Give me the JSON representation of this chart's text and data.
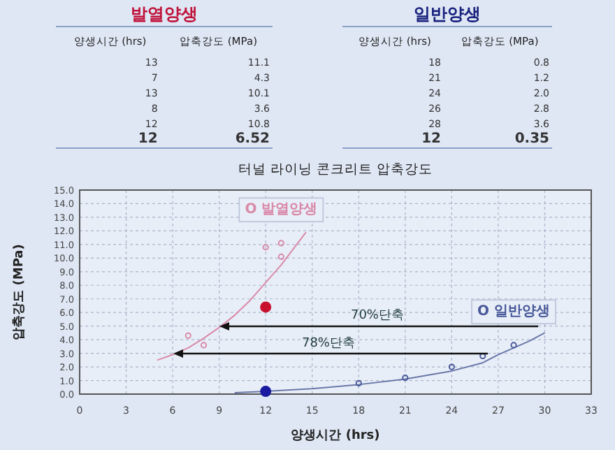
{
  "chart_data": [
    {
      "type": "other",
      "title": "발열양생",
      "color": "#c0143c",
      "categories": [
        "양생시간 (hrs)",
        "압축강도 (MPa)"
      ],
      "cell_labels": [
        [
          "13",
          "11.1"
        ],
        [
          "7",
          "4.3"
        ],
        [
          "13",
          "10.1"
        ],
        [
          "8",
          "3.6"
        ],
        [
          "12",
          "10.8"
        ],
        [
          "12",
          "6.52"
        ]
      ]
    },
    {
      "type": "other",
      "title": "일반양생",
      "color": "#1a237e",
      "categories": [
        "양생시간 (hrs)",
        "압축강도 (MPa)"
      ],
      "cell_labels": [
        [
          "18",
          "0.8"
        ],
        [
          "21",
          "1.2"
        ],
        [
          "24",
          "2.0"
        ],
        [
          "26",
          "2.8"
        ],
        [
          "28",
          "3.6"
        ],
        [
          "12",
          "0.35"
        ]
      ]
    },
    {
      "type": "scatter",
      "title": "터널 라이닝 콘크리트 압축강도",
      "xlabel": "양생시간 (hrs)",
      "ylabel": "압축강도 (MPa)",
      "xlim": [
        0,
        33
      ],
      "xticks": [
        0,
        3,
        6,
        9,
        12,
        15,
        18,
        21,
        24,
        27,
        30,
        33
      ],
      "ylim": [
        0,
        15
      ],
      "yticks": [
        {
          "value": 0,
          "label": "0.0"
        },
        {
          "value": 1,
          "label": "1.0"
        },
        {
          "value": 2,
          "label": "2.0"
        },
        {
          "value": 3,
          "label": "3.0"
        },
        {
          "value": 4,
          "label": "4.0"
        },
        {
          "value": 5,
          "label": "5.0"
        },
        {
          "value": 6,
          "label": "6.0"
        },
        {
          "value": 7,
          "label": "7.0"
        },
        {
          "value": 8,
          "label": "8.0"
        },
        {
          "value": 9,
          "label": "9.0"
        },
        {
          "value": 10,
          "label": "10.0"
        },
        {
          "value": 11,
          "label": "11.0"
        },
        {
          "value": 12,
          "label": "12.0"
        },
        {
          "value": 13,
          "label": "13.0"
        },
        {
          "value": 14,
          "label": "14.0"
        },
        {
          "value": 15,
          "label": "15.0"
        }
      ],
      "grid": true,
      "marker": "circle",
      "annotations": [
        "70%단축",
        "78%단축"
      ],
      "series": [
        {
          "type": "line",
          "marker": "none",
          "color": "#d98aa8",
          "x": [
            5,
            6,
            7,
            8,
            9,
            10,
            11,
            12,
            13,
            14,
            14.6
          ],
          "values": [
            2.5,
            2.9,
            3.4,
            4.1,
            4.9,
            5.8,
            6.9,
            8.2,
            9.5,
            11.0,
            11.9
          ]
        },
        {
          "type": "line",
          "marker": "none",
          "color": "#6a78a8",
          "x": [
            10,
            12,
            15,
            18,
            21,
            24,
            26,
            27,
            28,
            29,
            30
          ],
          "values": [
            0.1,
            0.2,
            0.4,
            0.7,
            1.1,
            1.7,
            2.3,
            2.9,
            3.4,
            3.9,
            4.5
          ]
        },
        {
          "name": "O 발열양생",
          "color": "#d98aa8",
          "x": [
            13,
            7,
            13,
            8,
            12
          ],
          "values": [
            11.1,
            4.3,
            10.1,
            3.6,
            10.8
          ]
        },
        {
          "name": "O 일반양생",
          "color": "#4a5a9a",
          "x": [
            18,
            21,
            24,
            26,
            28
          ],
          "values": [
            0.8,
            1.2,
            2.0,
            2.8,
            3.6
          ]
        },
        {
          "color": "#c8102e",
          "x": [
            12
          ],
          "values": [
            6.4
          ]
        },
        {
          "color": "#1a1aa0",
          "x": [
            12
          ],
          "values": [
            0.2
          ]
        }
      ]
    }
  ]
}
